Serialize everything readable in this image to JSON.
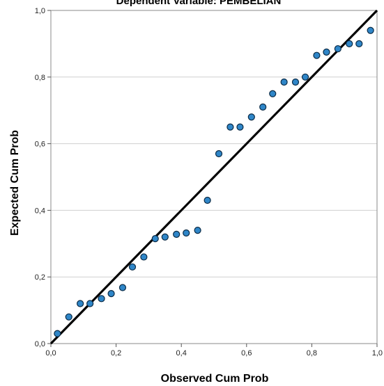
{
  "chart_data": {
    "type": "scatter",
    "title": "Dependent Variable: PEMBELIAN",
    "xlabel": "Observed Cum Prob",
    "ylabel": "Expected Cum Prob",
    "xlim": [
      0,
      1
    ],
    "ylim": [
      0,
      1
    ],
    "x_ticks": [
      "0,0",
      "0,2",
      "0,4",
      "0,6",
      "0,8",
      "1,0"
    ],
    "y_ticks": [
      "0,0",
      "0,2",
      "0,4",
      "0,6",
      "0,8",
      "1,0"
    ],
    "grid": "horizontal",
    "reference_line": {
      "from": [
        0,
        0
      ],
      "to": [
        1,
        1
      ]
    },
    "colors": {
      "point_fill": "#2f86c8",
      "point_stroke": "#0a2a45",
      "line": "#000000",
      "grid": "#cfcfcf",
      "frame": "#8a8a8a"
    },
    "points": [
      {
        "x": 0.02,
        "y": 0.03
      },
      {
        "x": 0.055,
        "y": 0.08
      },
      {
        "x": 0.09,
        "y": 0.12
      },
      {
        "x": 0.12,
        "y": 0.12
      },
      {
        "x": 0.155,
        "y": 0.135
      },
      {
        "x": 0.185,
        "y": 0.15
      },
      {
        "x": 0.22,
        "y": 0.168
      },
      {
        "x": 0.25,
        "y": 0.23
      },
      {
        "x": 0.285,
        "y": 0.26
      },
      {
        "x": 0.32,
        "y": 0.315
      },
      {
        "x": 0.35,
        "y": 0.32
      },
      {
        "x": 0.385,
        "y": 0.328
      },
      {
        "x": 0.415,
        "y": 0.332
      },
      {
        "x": 0.45,
        "y": 0.34
      },
      {
        "x": 0.48,
        "y": 0.43
      },
      {
        "x": 0.515,
        "y": 0.57
      },
      {
        "x": 0.55,
        "y": 0.65
      },
      {
        "x": 0.58,
        "y": 0.65
      },
      {
        "x": 0.615,
        "y": 0.68
      },
      {
        "x": 0.65,
        "y": 0.71
      },
      {
        "x": 0.68,
        "y": 0.75
      },
      {
        "x": 0.715,
        "y": 0.785
      },
      {
        "x": 0.75,
        "y": 0.785
      },
      {
        "x": 0.78,
        "y": 0.8
      },
      {
        "x": 0.815,
        "y": 0.865
      },
      {
        "x": 0.845,
        "y": 0.875
      },
      {
        "x": 0.88,
        "y": 0.885
      },
      {
        "x": 0.915,
        "y": 0.9
      },
      {
        "x": 0.945,
        "y": 0.9
      },
      {
        "x": 0.98,
        "y": 0.94
      }
    ]
  }
}
